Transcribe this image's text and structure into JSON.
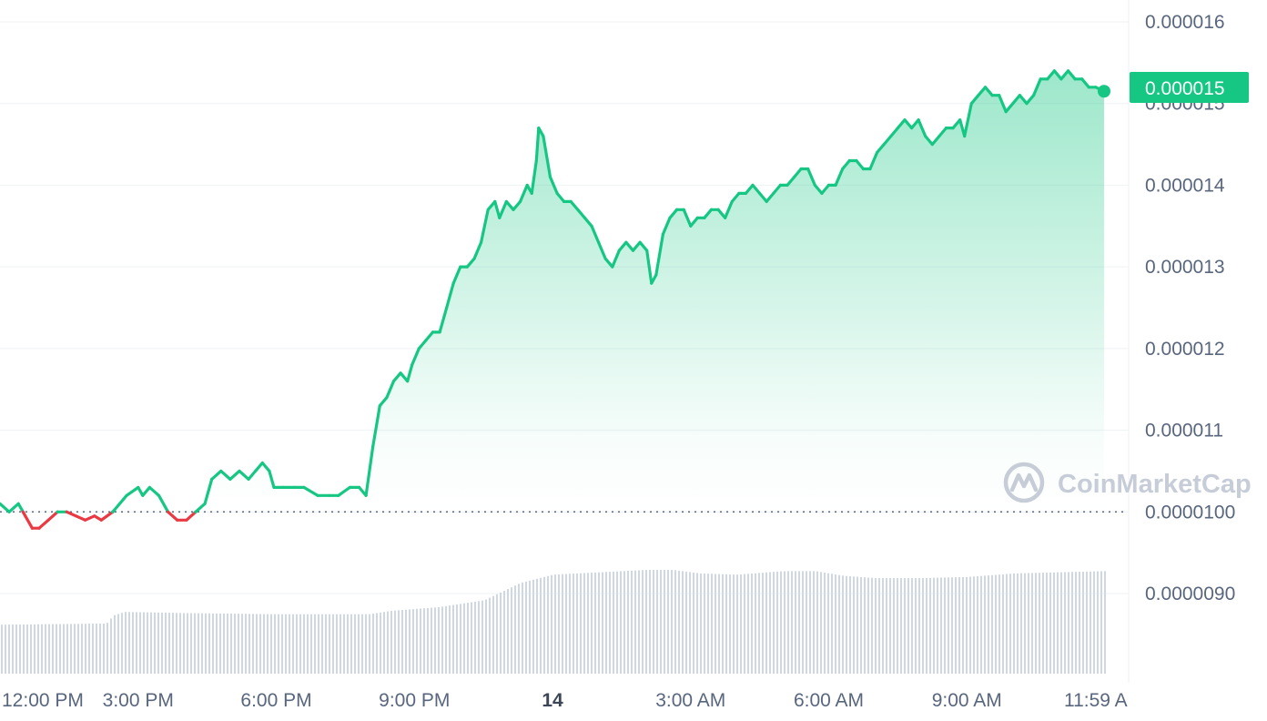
{
  "colors": {
    "up": "#16c784",
    "down": "#ea3943",
    "grid": "#eff2f5",
    "baseline": "#58667e",
    "volume": "#cfd6e4",
    "axis_text": "#58667e",
    "watermark": "#c5cbd6"
  },
  "watermark": {
    "text": "CoinMarketCap",
    "icon": "coinmarketcap-logo-icon"
  },
  "chart_data": {
    "type": "line",
    "title": "",
    "xlabel": "",
    "ylabel": "",
    "y_ticks": [
      "0.000016",
      "0.000015",
      "0.000014",
      "0.000013",
      "0.000012",
      "0.000011",
      "0.0000100",
      "0.0000090"
    ],
    "y_tick_values": [
      1.6e-05,
      1.5e-05,
      1.4e-05,
      1.3e-05,
      1.2e-05,
      1.1e-05,
      1e-05,
      9e-06
    ],
    "x_ticks": [
      "12:00 PM",
      "3:00 PM",
      "6:00 PM",
      "9:00 PM",
      "14",
      "3:00 AM",
      "6:00 AM",
      "9:00 AM",
      "11:59 A"
    ],
    "x_tick_hours": [
      12,
      15,
      18,
      21,
      24,
      27,
      30,
      33,
      35.98
    ],
    "bold_tick": "14",
    "baseline_value": 1e-05,
    "current_price": "0.000015",
    "current_value": 1.515e-05,
    "xlim_hours": [
      12,
      36
    ],
    "ylim": [
      8.2e-06,
      1.62e-05
    ],
    "grid": true,
    "series": [
      {
        "points": [
          [
            12.0,
            1.01e-05
          ],
          [
            12.2,
            1e-05
          ],
          [
            12.4,
            1.01e-05
          ],
          [
            12.55,
            9.95e-06
          ],
          [
            12.7,
            9.8e-06
          ],
          [
            12.85,
            9.8e-06
          ],
          [
            13.05,
            9.9e-06
          ],
          [
            13.25,
            1e-05
          ],
          [
            13.45,
            1e-05
          ],
          [
            13.65,
            9.95e-06
          ],
          [
            13.85,
            9.9e-06
          ],
          [
            14.05,
            9.95e-06
          ],
          [
            14.2,
            9.9e-06
          ],
          [
            14.45,
            1e-05
          ],
          [
            14.75,
            1.02e-05
          ],
          [
            15.0,
            1.03e-05
          ],
          [
            15.1,
            1.02e-05
          ],
          [
            15.25,
            1.03e-05
          ],
          [
            15.45,
            1.02e-05
          ],
          [
            15.65,
            1e-05
          ],
          [
            15.85,
            9.9e-06
          ],
          [
            16.05,
            9.9e-06
          ],
          [
            16.25,
            1e-05
          ],
          [
            16.45,
            1.01e-05
          ],
          [
            16.6,
            1.04e-05
          ],
          [
            16.8,
            1.05e-05
          ],
          [
            17.0,
            1.04e-05
          ],
          [
            17.2,
            1.05e-05
          ],
          [
            17.4,
            1.04e-05
          ],
          [
            17.55,
            1.05e-05
          ],
          [
            17.7,
            1.06e-05
          ],
          [
            17.85,
            1.05e-05
          ],
          [
            17.95,
            1.03e-05
          ],
          [
            18.15,
            1.03e-05
          ],
          [
            18.4,
            1.03e-05
          ],
          [
            18.6,
            1.03e-05
          ],
          [
            18.9,
            1.02e-05
          ],
          [
            19.15,
            1.02e-05
          ],
          [
            19.35,
            1.02e-05
          ],
          [
            19.6,
            1.03e-05
          ],
          [
            19.8,
            1.03e-05
          ],
          [
            19.95,
            1.02e-05
          ],
          [
            20.1,
            1.08e-05
          ],
          [
            20.25,
            1.13e-05
          ],
          [
            20.4,
            1.14e-05
          ],
          [
            20.55,
            1.16e-05
          ],
          [
            20.7,
            1.17e-05
          ],
          [
            20.85,
            1.16e-05
          ],
          [
            20.95,
            1.18e-05
          ],
          [
            21.1,
            1.2e-05
          ],
          [
            21.25,
            1.21e-05
          ],
          [
            21.4,
            1.22e-05
          ],
          [
            21.55,
            1.22e-05
          ],
          [
            21.7,
            1.25e-05
          ],
          [
            21.85,
            1.28e-05
          ],
          [
            22.0,
            1.3e-05
          ],
          [
            22.15,
            1.3e-05
          ],
          [
            22.3,
            1.31e-05
          ],
          [
            22.45,
            1.33e-05
          ],
          [
            22.6,
            1.37e-05
          ],
          [
            22.75,
            1.38e-05
          ],
          [
            22.85,
            1.36e-05
          ],
          [
            23.0,
            1.38e-05
          ],
          [
            23.15,
            1.37e-05
          ],
          [
            23.3,
            1.38e-05
          ],
          [
            23.45,
            1.4e-05
          ],
          [
            23.55,
            1.39e-05
          ],
          [
            23.65,
            1.43e-05
          ],
          [
            23.7,
            1.47e-05
          ],
          [
            23.8,
            1.46e-05
          ],
          [
            23.95,
            1.41e-05
          ],
          [
            24.1,
            1.39e-05
          ],
          [
            24.25,
            1.38e-05
          ],
          [
            24.4,
            1.38e-05
          ],
          [
            24.55,
            1.37e-05
          ],
          [
            24.7,
            1.36e-05
          ],
          [
            24.85,
            1.35e-05
          ],
          [
            25.0,
            1.33e-05
          ],
          [
            25.15,
            1.31e-05
          ],
          [
            25.3,
            1.3e-05
          ],
          [
            25.45,
            1.32e-05
          ],
          [
            25.6,
            1.33e-05
          ],
          [
            25.75,
            1.32e-05
          ],
          [
            25.9,
            1.33e-05
          ],
          [
            26.05,
            1.32e-05
          ],
          [
            26.15,
            1.28e-05
          ],
          [
            26.25,
            1.29e-05
          ],
          [
            26.4,
            1.34e-05
          ],
          [
            26.55,
            1.36e-05
          ],
          [
            26.7,
            1.37e-05
          ],
          [
            26.85,
            1.37e-05
          ],
          [
            27.0,
            1.35e-05
          ],
          [
            27.15,
            1.36e-05
          ],
          [
            27.3,
            1.36e-05
          ],
          [
            27.45,
            1.37e-05
          ],
          [
            27.6,
            1.37e-05
          ],
          [
            27.75,
            1.36e-05
          ],
          [
            27.9,
            1.38e-05
          ],
          [
            28.05,
            1.39e-05
          ],
          [
            28.2,
            1.39e-05
          ],
          [
            28.35,
            1.4e-05
          ],
          [
            28.5,
            1.39e-05
          ],
          [
            28.65,
            1.38e-05
          ],
          [
            28.8,
            1.39e-05
          ],
          [
            28.95,
            1.4e-05
          ],
          [
            29.1,
            1.4e-05
          ],
          [
            29.25,
            1.41e-05
          ],
          [
            29.4,
            1.42e-05
          ],
          [
            29.55,
            1.42e-05
          ],
          [
            29.7,
            1.4e-05
          ],
          [
            29.85,
            1.39e-05
          ],
          [
            30.0,
            1.4e-05
          ],
          [
            30.15,
            1.4e-05
          ],
          [
            30.3,
            1.42e-05
          ],
          [
            30.45,
            1.43e-05
          ],
          [
            30.6,
            1.43e-05
          ],
          [
            30.75,
            1.42e-05
          ],
          [
            30.9,
            1.42e-05
          ],
          [
            31.05,
            1.44e-05
          ],
          [
            31.2,
            1.45e-05
          ],
          [
            31.35,
            1.46e-05
          ],
          [
            31.5,
            1.47e-05
          ],
          [
            31.65,
            1.48e-05
          ],
          [
            31.8,
            1.47e-05
          ],
          [
            31.95,
            1.48e-05
          ],
          [
            32.1,
            1.46e-05
          ],
          [
            32.25,
            1.45e-05
          ],
          [
            32.4,
            1.46e-05
          ],
          [
            32.55,
            1.47e-05
          ],
          [
            32.7,
            1.47e-05
          ],
          [
            32.85,
            1.48e-05
          ],
          [
            32.95,
            1.46e-05
          ],
          [
            33.1,
            1.5e-05
          ],
          [
            33.25,
            1.51e-05
          ],
          [
            33.4,
            1.52e-05
          ],
          [
            33.55,
            1.51e-05
          ],
          [
            33.7,
            1.51e-05
          ],
          [
            33.85,
            1.49e-05
          ],
          [
            34.0,
            1.5e-05
          ],
          [
            34.15,
            1.51e-05
          ],
          [
            34.3,
            1.5e-05
          ],
          [
            34.45,
            1.51e-05
          ],
          [
            34.6,
            1.53e-05
          ],
          [
            34.75,
            1.53e-05
          ],
          [
            34.9,
            1.54e-05
          ],
          [
            35.05,
            1.53e-05
          ],
          [
            35.2,
            1.54e-05
          ],
          [
            35.35,
            1.53e-05
          ],
          [
            35.5,
            1.53e-05
          ],
          [
            35.65,
            1.52e-05
          ],
          [
            35.8,
            1.52e-05
          ],
          [
            35.98,
            1.515e-05
          ]
        ]
      }
    ],
    "volume": {
      "note": "relative bar heights (0-1), left to right",
      "levels": [
        [
          12.0,
          0.42
        ],
        [
          14.3,
          0.43
        ],
        [
          14.45,
          0.5
        ],
        [
          14.7,
          0.53
        ],
        [
          16.0,
          0.52
        ],
        [
          18.0,
          0.51
        ],
        [
          20.0,
          0.51
        ],
        [
          20.5,
          0.54
        ],
        [
          21.5,
          0.57
        ],
        [
          22.5,
          0.63
        ],
        [
          23.3,
          0.78
        ],
        [
          24.0,
          0.85
        ],
        [
          25.0,
          0.87
        ],
        [
          26.0,
          0.89
        ],
        [
          26.6,
          0.89
        ],
        [
          27.2,
          0.86
        ],
        [
          28.0,
          0.85
        ],
        [
          29.0,
          0.88
        ],
        [
          29.7,
          0.88
        ],
        [
          30.3,
          0.84
        ],
        [
          31.0,
          0.82
        ],
        [
          32.0,
          0.82
        ],
        [
          33.0,
          0.83
        ],
        [
          34.0,
          0.86
        ],
        [
          35.0,
          0.87
        ],
        [
          35.98,
          0.88
        ]
      ]
    }
  }
}
